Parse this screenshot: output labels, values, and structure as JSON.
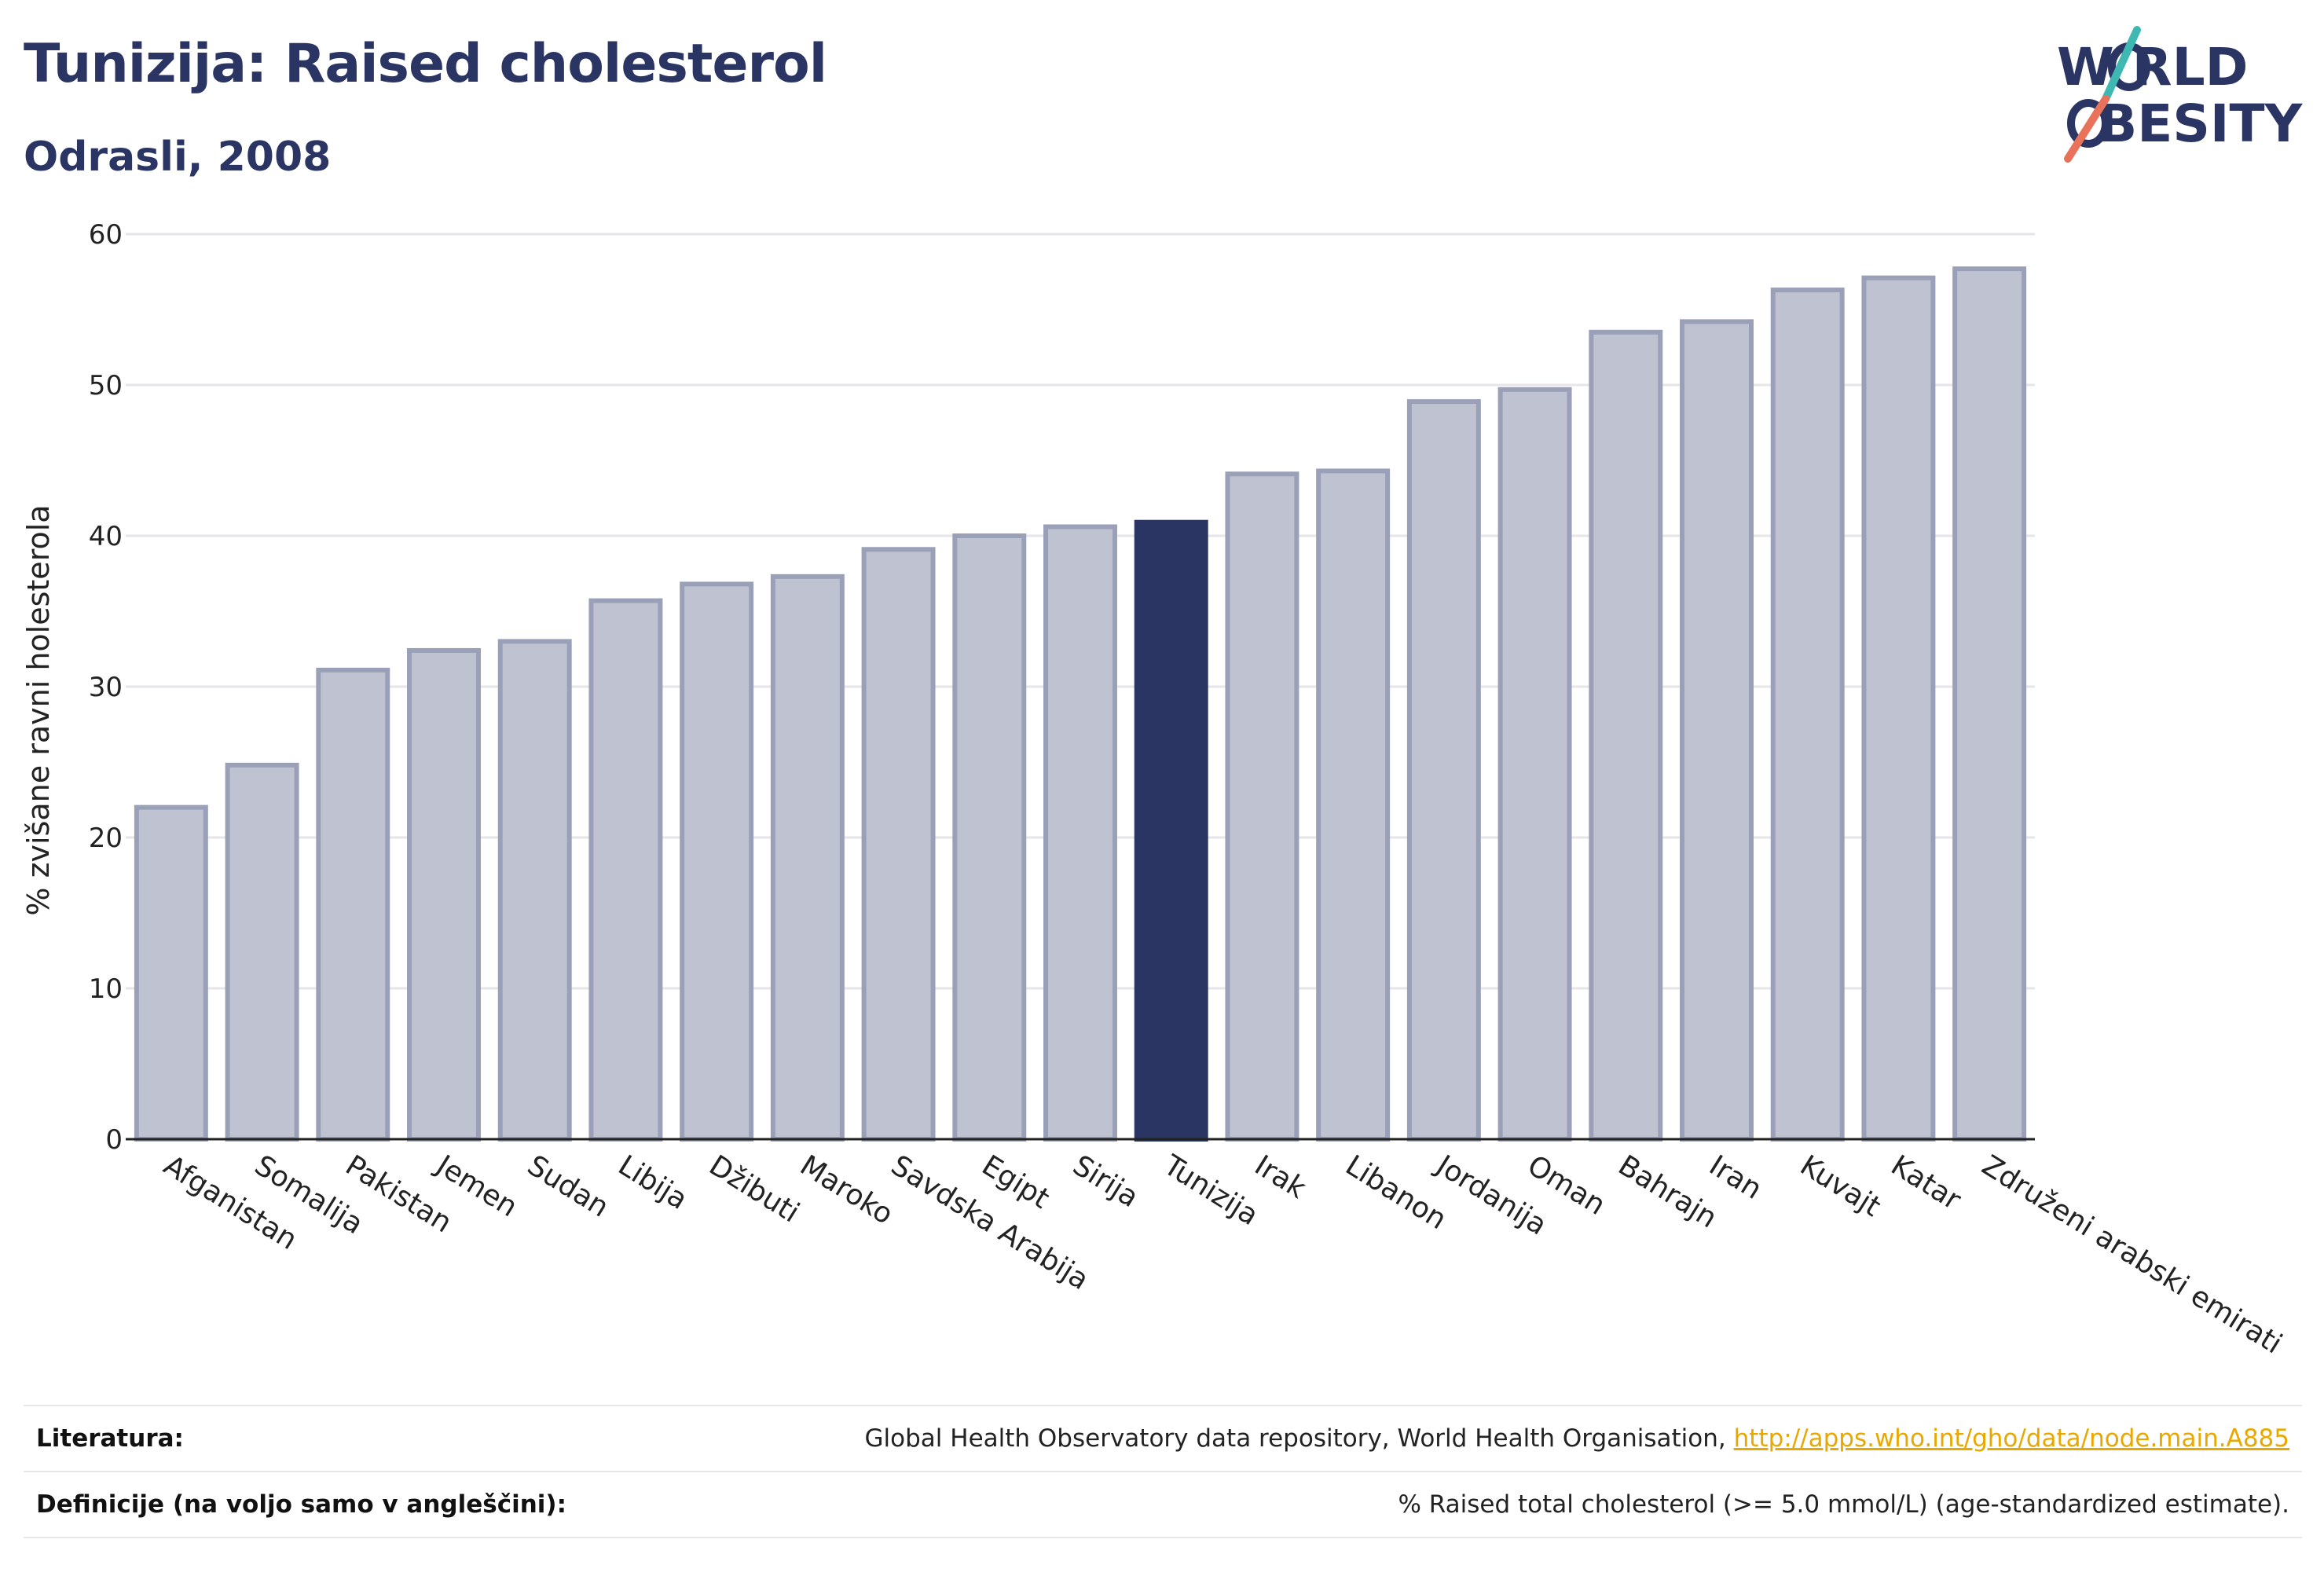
{
  "header": {
    "title": "Tunizija: Raised cholesterol",
    "subtitle": "Odrasli, 2008"
  },
  "logo": {
    "line1": "W   RLD",
    "line2": "BESITY",
    "colors": {
      "navy": "#2b3563",
      "teal": "#3fb8b3",
      "coral": "#e8735a"
    }
  },
  "chart_data": {
    "type": "bar",
    "title": "Tunizija: Raised cholesterol",
    "subtitle": "Odrasli, 2008",
    "xlabel": "",
    "ylabel": "% zvišane ravni holesterola",
    "ylim": [
      0,
      60
    ],
    "yticks": [
      0,
      10,
      20,
      30,
      40,
      50,
      60
    ],
    "grid": true,
    "highlight": "Tunizija",
    "colors": {
      "bar": "#bfc2d0",
      "bar_stroke": "#9aa0b8",
      "highlight": "#2b3563"
    },
    "categories": [
      "Afganistan",
      "Somalija",
      "Pakistan",
      "Jemen",
      "Sudan",
      "Libija",
      "Džibuti",
      "Maroko",
      "Savdska Arabija",
      "Egipt",
      "Sirija",
      "Tunizija",
      "Irak",
      "Libanon",
      "Jordanija",
      "Oman",
      "Bahrajn",
      "Iran",
      "Kuvajt",
      "Katar",
      "Združeni arabski emirati"
    ],
    "values": [
      22.0,
      24.8,
      31.1,
      32.4,
      33.0,
      35.7,
      36.8,
      37.3,
      39.1,
      40.0,
      40.6,
      40.9,
      44.1,
      44.3,
      48.9,
      49.7,
      53.5,
      54.2,
      56.3,
      57.1,
      57.7
    ]
  },
  "footer": {
    "literature_label": "Literatura:",
    "literature_text": "Global Health Observatory data repository, World Health Organisation, ",
    "literature_link": "http://apps.who.int/gho/data/node.main.A885",
    "definitions_label": "Definicije (na voljo samo v angleščini):",
    "definitions_text": "% Raised total cholesterol (>= 5.0 mmol/L) (age-standardized estimate)."
  }
}
